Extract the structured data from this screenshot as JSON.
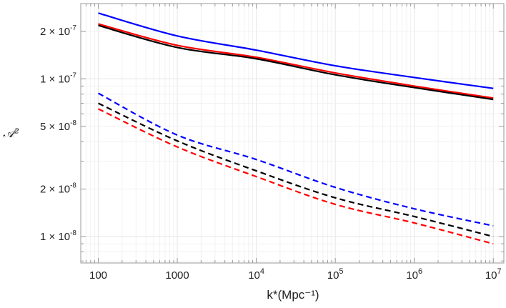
{
  "chart_data": {
    "type": "line",
    "title": "",
    "xlabel": "k*(Mpc⁻¹)",
    "ylabel": "𝒜²",
    "xscale": "log",
    "yscale": "log",
    "xlim": [
      60,
      13600000
    ],
    "ylim": [
      6.8e-09,
      3e-07
    ],
    "grid": true,
    "x_ticks": [
      {
        "value": 100,
        "label": "100"
      },
      {
        "value": 1000,
        "label": "1000"
      },
      {
        "value": 10000,
        "label": "10",
        "exp": "4"
      },
      {
        "value": 100000,
        "label": "10",
        "exp": "5"
      },
      {
        "value": 1000000,
        "label": "10",
        "exp": "6"
      },
      {
        "value": 10000000,
        "label": "10",
        "exp": "7"
      }
    ],
    "y_ticks": [
      {
        "value": 2e-07,
        "label": "2 × 10",
        "exp": "-7"
      },
      {
        "value": 1e-07,
        "label": "1 × 10",
        "exp": "-7"
      },
      {
        "value": 5e-08,
        "label": "5 × 10",
        "exp": "-8"
      },
      {
        "value": 2e-08,
        "label": "2 × 10",
        "exp": "-8"
      },
      {
        "value": 1e-08,
        "label": "1 × 10",
        "exp": "-8"
      }
    ],
    "x": [
      100,
      1000,
      10000,
      100000,
      1000000,
      10000000
    ],
    "series": [
      {
        "color": "#0000ff",
        "style": "solid",
        "values": [
          2.61e-07,
          1.87e-07,
          1.52e-07,
          1.21e-07,
          1.02e-07,
          8.7e-08
        ]
      },
      {
        "color": "#ff0000",
        "style": "solid",
        "values": [
          2.23e-07,
          1.63e-07,
          1.37e-07,
          1.09e-07,
          9e-08,
          7.55e-08
        ]
      },
      {
        "color": "#000000",
        "style": "solid",
        "values": [
          2.18e-07,
          1.58e-07,
          1.34e-07,
          1.06e-07,
          8.8e-08,
          7.4e-08
        ]
      },
      {
        "color": "#0000ff",
        "style": "dashed",
        "values": [
          8.1e-08,
          4.4e-08,
          3.08e-08,
          2.05e-08,
          1.5e-08,
          1.17e-08
        ]
      },
      {
        "color": "#000000",
        "style": "dashed",
        "values": [
          7e-08,
          4.04e-08,
          2.61e-08,
          1.76e-08,
          1.34e-08,
          1e-08
        ]
      },
      {
        "color": "#ff0000",
        "style": "dashed",
        "values": [
          6.45e-08,
          3.7e-08,
          2.4e-08,
          1.6e-08,
          1.22e-08,
          9e-09
        ]
      }
    ]
  }
}
